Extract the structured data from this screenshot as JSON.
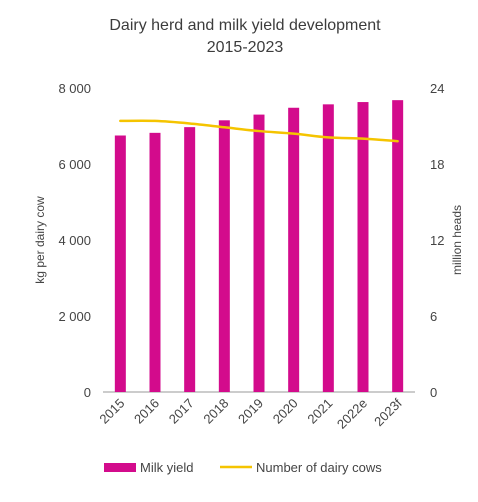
{
  "chart_data": {
    "type": "bar",
    "title": "Dairy herd and milk yield development",
    "subtitle": "2015-2023",
    "categories": [
      "2015",
      "2016",
      "2017",
      "2018",
      "2019",
      "2020",
      "2021",
      "2022e",
      "2023f"
    ],
    "series": [
      {
        "name": "Milk yield",
        "type": "bar",
        "axis": "left",
        "color": "#d30b8c",
        "values": [
          6750,
          6820,
          6970,
          7150,
          7300,
          7480,
          7570,
          7630,
          7680
        ]
      },
      {
        "name": "Number of dairy cows",
        "type": "line",
        "axis": "right",
        "color": "#f5c400",
        "values": [
          21.4,
          21.4,
          21.2,
          20.9,
          20.6,
          20.4,
          20.1,
          20.0,
          19.8
        ]
      }
    ],
    "ylabel": "kg per dairy cow",
    "y2label": "million heads",
    "ylim": [
      0,
      8000
    ],
    "y2lim": [
      0,
      24
    ],
    "yticks": [
      "0",
      "2 000",
      "4 000",
      "6 000",
      "8 000"
    ],
    "y2ticks": [
      "0",
      "6",
      "12",
      "18",
      "24"
    ],
    "grid": false,
    "legend_position": "bottom"
  }
}
